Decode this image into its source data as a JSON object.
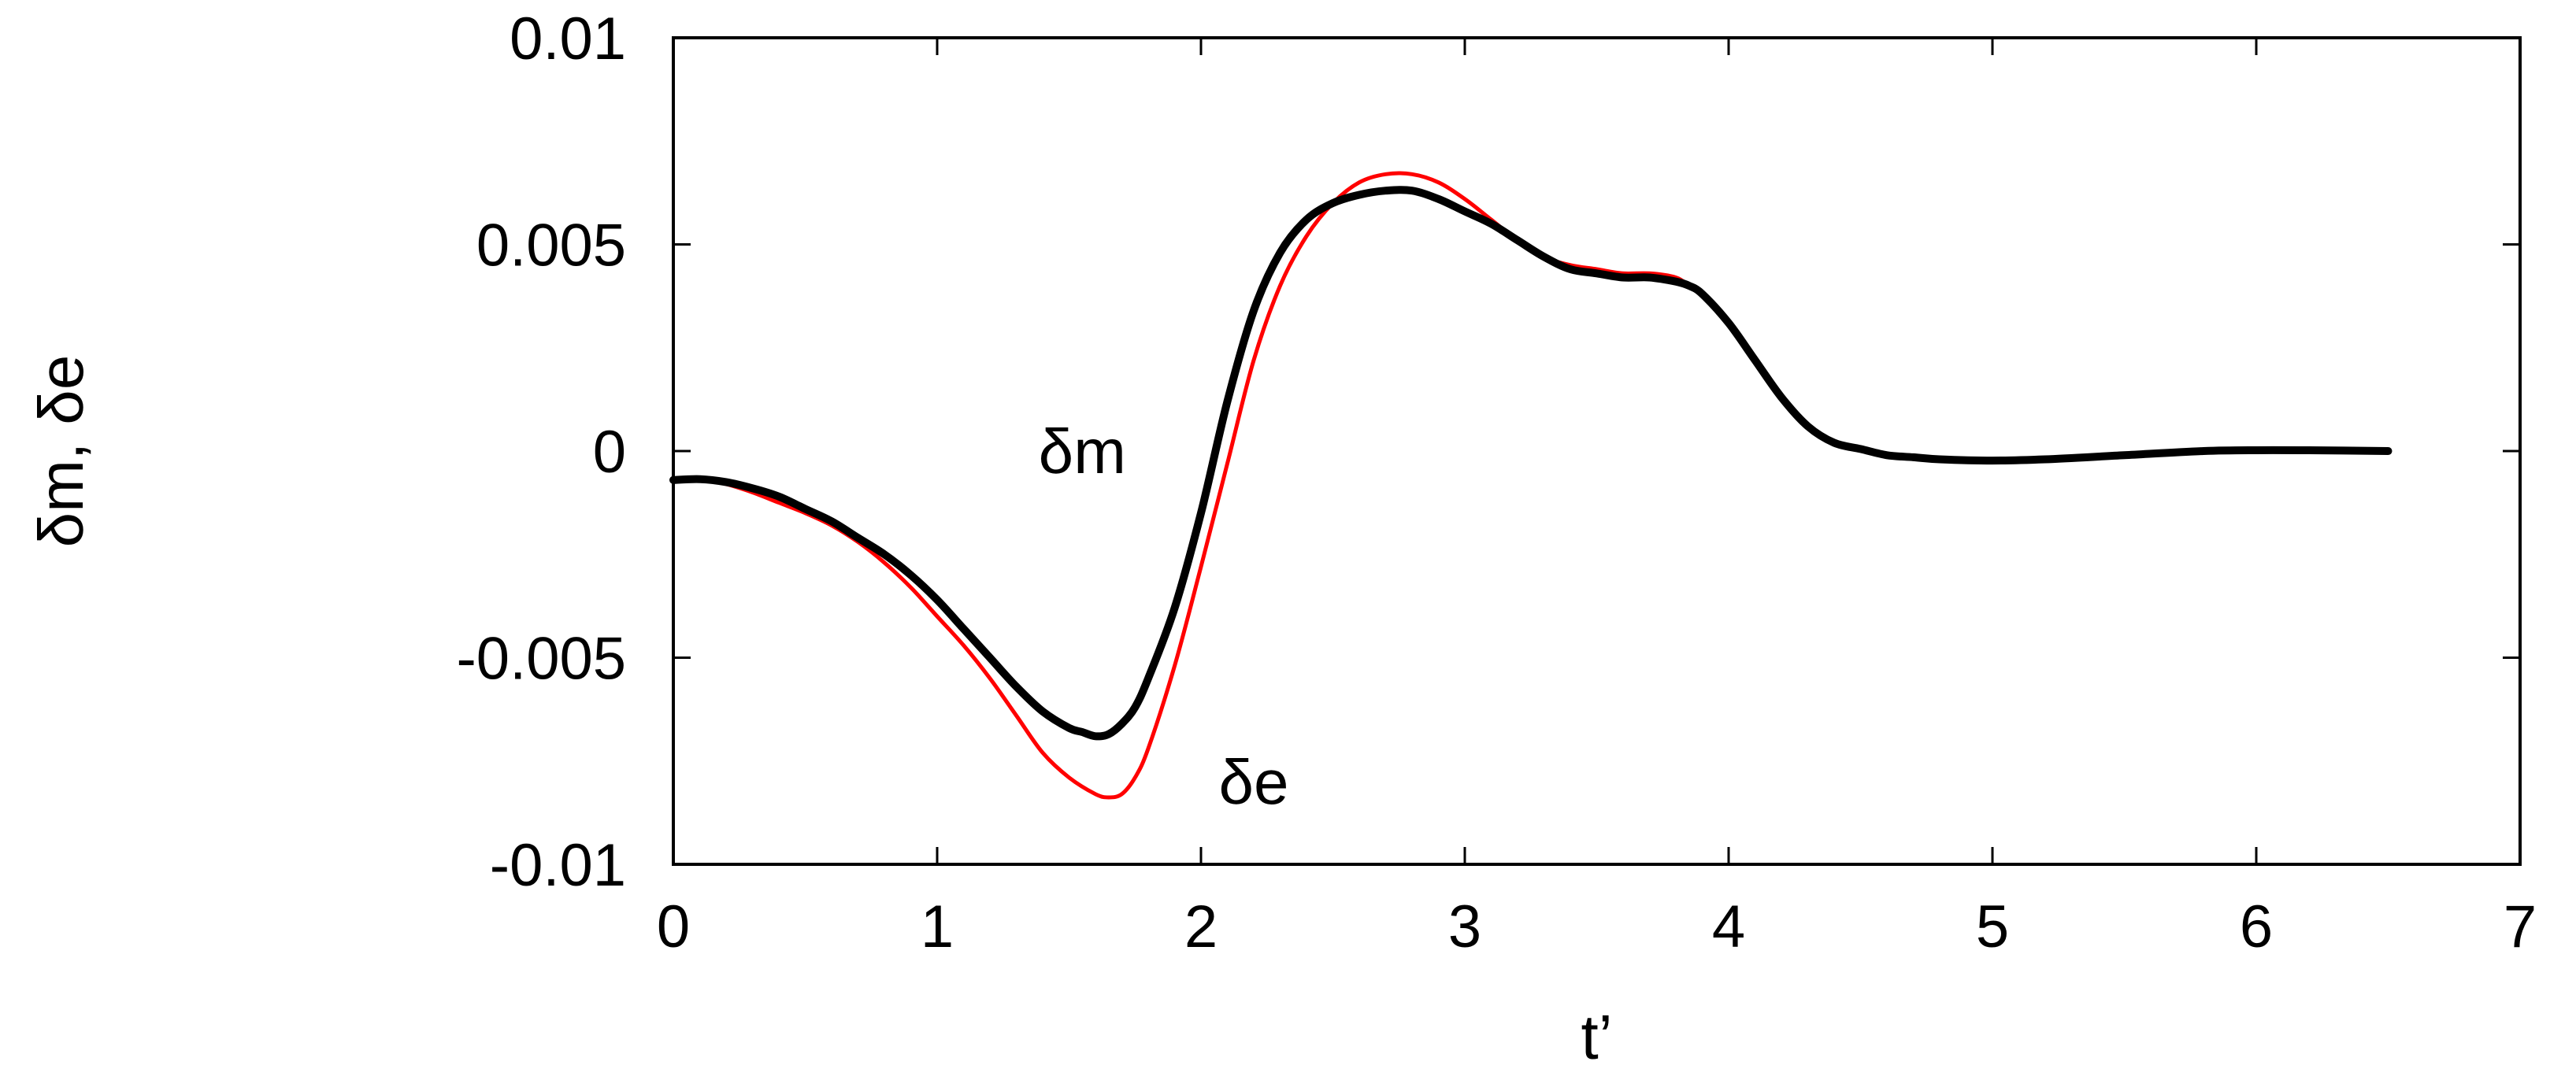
{
  "chart_data": {
    "type": "line",
    "title": "",
    "xlabel": "t’",
    "ylabel": "δm, δe",
    "xlim": [
      0,
      7
    ],
    "ylim": [
      -0.01,
      0.01
    ],
    "x_ticks": [
      0,
      1,
      2,
      3,
      4,
      5,
      6,
      7
    ],
    "x_tick_labels": [
      "0",
      "1",
      "2",
      "3",
      "4",
      "5",
      "6",
      "7"
    ],
    "y_ticks": [
      -0.01,
      -0.005,
      0,
      0.005,
      0.01
    ],
    "y_tick_labels": [
      "-0.01",
      "-0.005",
      "0",
      "0.005",
      "0.01"
    ],
    "grid": false,
    "legend": "none",
    "series": [
      {
        "name": "δe",
        "color": "#ff0000",
        "x": [
          0,
          0.1,
          0.2,
          0.3,
          0.4,
          0.5,
          0.6,
          0.7,
          0.8,
          0.9,
          1.0,
          1.1,
          1.2,
          1.3,
          1.4,
          1.5,
          1.6,
          1.65,
          1.7,
          1.75,
          1.8,
          1.9,
          2.0,
          2.1,
          2.2,
          2.3,
          2.4,
          2.5,
          2.6,
          2.7,
          2.8,
          2.9,
          3.0,
          3.1,
          3.2,
          3.3,
          3.4,
          3.5,
          3.6,
          3.7,
          3.8,
          3.85,
          3.9,
          4.0,
          4.1,
          4.2,
          4.3,
          4.4,
          4.5,
          4.6,
          4.7,
          4.8,
          5.0,
          5.2,
          5.5,
          5.8,
          6.0,
          6.2,
          6.5
        ],
        "y": [
          -0.0007,
          -0.00068,
          -0.0008,
          -0.001,
          -0.00125,
          -0.0015,
          -0.0018,
          -0.0022,
          -0.0027,
          -0.0033,
          -0.004,
          -0.0047,
          -0.0055,
          -0.0064,
          -0.0073,
          -0.0079,
          -0.0083,
          -0.00838,
          -0.0083,
          -0.0079,
          -0.0072,
          -0.0052,
          -0.0028,
          -0.0003,
          0.0022,
          0.004,
          0.0052,
          0.006,
          0.0065,
          0.0067,
          0.0067,
          0.0065,
          0.0061,
          0.0056,
          0.0051,
          0.0047,
          0.0045,
          0.0044,
          0.0043,
          0.0043,
          0.0042,
          0.004,
          0.0038,
          0.0031,
          0.0022,
          0.0013,
          0.0006,
          0.0002,
          5e-05,
          -0.0001,
          -0.00015,
          -0.0002,
          -0.00023,
          -0.0002,
          -0.0001,
          0.0,
          2e-05,
          2e-05,
          0.0
        ]
      },
      {
        "name": "δm",
        "color": "#000000",
        "x": [
          0,
          0.1,
          0.2,
          0.3,
          0.4,
          0.5,
          0.6,
          0.7,
          0.8,
          0.9,
          1.0,
          1.1,
          1.2,
          1.3,
          1.4,
          1.5,
          1.55,
          1.6,
          1.65,
          1.7,
          1.75,
          1.8,
          1.9,
          2.0,
          2.1,
          2.2,
          2.3,
          2.4,
          2.5,
          2.6,
          2.7,
          2.8,
          2.9,
          3.0,
          3.1,
          3.2,
          3.3,
          3.4,
          3.5,
          3.6,
          3.7,
          3.8,
          3.85,
          3.9,
          4.0,
          4.1,
          4.2,
          4.3,
          4.4,
          4.5,
          4.6,
          4.7,
          4.8,
          5.0,
          5.2,
          5.5,
          5.8,
          6.0,
          6.2,
          6.5
        ],
        "y": [
          -0.0007,
          -0.00068,
          -0.00075,
          -0.0009,
          -0.0011,
          -0.0014,
          -0.0017,
          -0.0021,
          -0.0025,
          -0.003,
          -0.0036,
          -0.0043,
          -0.005,
          -0.0057,
          -0.0063,
          -0.0067,
          -0.0068,
          -0.0069,
          -0.00685,
          -0.0066,
          -0.0062,
          -0.0055,
          -0.0038,
          -0.0015,
          0.0012,
          0.0034,
          0.0048,
          0.0056,
          0.006,
          0.0062,
          0.0063,
          0.0063,
          0.0061,
          0.0058,
          0.0055,
          0.0051,
          0.0047,
          0.0044,
          0.0043,
          0.0042,
          0.0042,
          0.0041,
          0.004,
          0.0038,
          0.0031,
          0.0022,
          0.0013,
          0.0006,
          0.0002,
          5e-05,
          -0.0001,
          -0.00015,
          -0.0002,
          -0.00023,
          -0.0002,
          -0.0001,
          0.0,
          2e-05,
          2e-05,
          0.0
        ]
      }
    ],
    "annotations": [
      {
        "text": "δm",
        "x": 1.55,
        "y": 0.0
      },
      {
        "text": "δe",
        "x": 2.2,
        "y": -0.008
      }
    ]
  }
}
